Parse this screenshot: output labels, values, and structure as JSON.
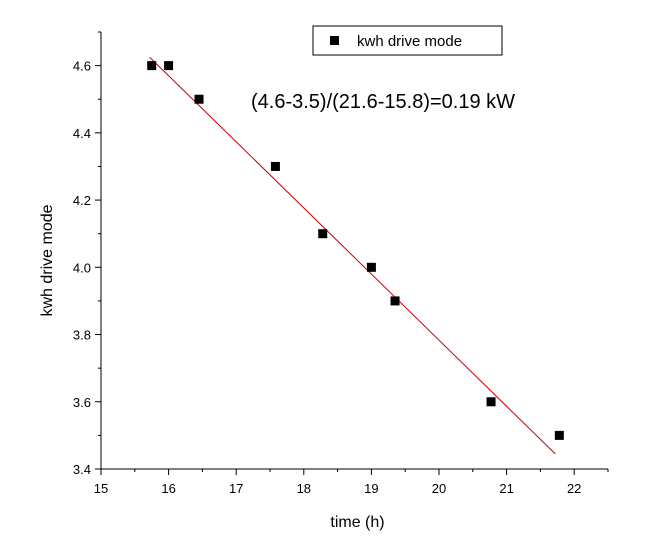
{
  "chart_data": {
    "type": "scatter",
    "title": "",
    "xlabel": "time (h)",
    "ylabel": "kwh drive mode",
    "xlim": [
      15,
      22.5
    ],
    "ylim": [
      3.4,
      4.7
    ],
    "xticks": [
      15,
      16,
      17,
      18,
      19,
      20,
      21,
      22
    ],
    "yticks": [
      3.4,
      3.6,
      3.8,
      4.0,
      4.2,
      4.4,
      4.6
    ],
    "xtick_labels": [
      "15",
      "16",
      "17",
      "18",
      "19",
      "20",
      "21",
      "22"
    ],
    "ytick_labels": [
      "3.4",
      "3.6",
      "3.8",
      "4.0",
      "4.2",
      "4.4",
      "4.6"
    ],
    "series": [
      {
        "name": "kwh drive mode",
        "marker": "square",
        "color": "#000000",
        "points": [
          {
            "x": 15.75,
            "y": 4.6
          },
          {
            "x": 16.0,
            "y": 4.6
          },
          {
            "x": 16.45,
            "y": 4.5
          },
          {
            "x": 17.58,
            "y": 4.3
          },
          {
            "x": 18.28,
            "y": 4.1
          },
          {
            "x": 19.0,
            "y": 4.0
          },
          {
            "x": 19.35,
            "y": 3.9
          },
          {
            "x": 20.77,
            "y": 3.6
          },
          {
            "x": 21.78,
            "y": 3.5
          }
        ]
      }
    ],
    "fit_line": {
      "color": "#cc0000",
      "start": {
        "x": 15.72,
        "y": 4.625
      },
      "end": {
        "x": 21.72,
        "y": 3.445
      }
    },
    "legend": {
      "position": "top-right",
      "entries": [
        "kwh drive mode"
      ]
    },
    "annotation": "(4.6-3.5)/(21.6-15.8)=0.19 kW"
  }
}
